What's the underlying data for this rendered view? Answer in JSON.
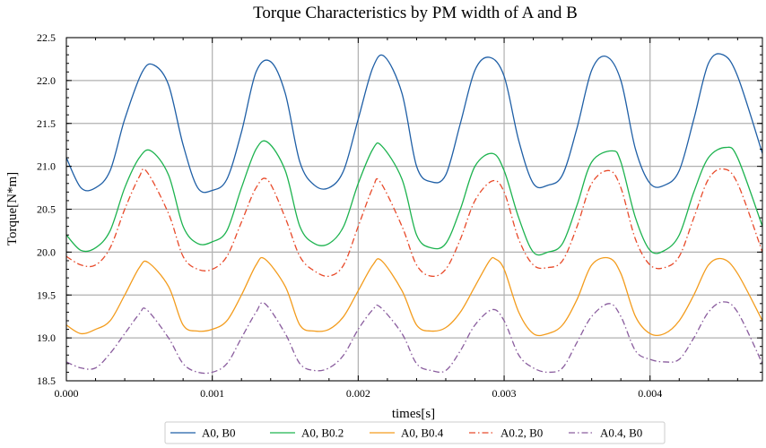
{
  "chart_data": {
    "type": "line",
    "title": "Torque Characteristics by PM width of A and B",
    "xlabel": "times[s]",
    "ylabel": "Torque[N*m]",
    "xlim": [
      0,
      0.00477
    ],
    "ylim": [
      18.5,
      22.5
    ],
    "x_ticks": [
      0,
      0.001,
      0.002,
      0.003,
      0.004
    ],
    "x_tick_labels": [
      "0.000",
      "0.001",
      "0.002",
      "0.003",
      "0.004"
    ],
    "y_ticks": [
      18.5,
      19.0,
      19.5,
      20.0,
      20.5,
      21.0,
      21.5,
      22.0,
      22.5
    ],
    "y_tick_labels": [
      "18.5",
      "19.0",
      "19.5",
      "20.0",
      "20.5",
      "21.0",
      "21.5",
      "22.0",
      "22.5"
    ],
    "grid": true,
    "legend_position": "bottom-center",
    "series": [
      {
        "name": "A0, B0",
        "color": "#1f5fa6",
        "dash": "solid",
        "points": [
          [
            0,
            21.1
          ],
          [
            0.0001,
            20.75
          ],
          [
            0.0002,
            20.75
          ],
          [
            0.0003,
            20.95
          ],
          [
            0.0004,
            21.55
          ],
          [
            0.00052,
            22.1
          ],
          [
            0.0006,
            22.18
          ],
          [
            0.0007,
            21.95
          ],
          [
            0.0008,
            21.25
          ],
          [
            0.0009,
            20.75
          ],
          [
            0.001,
            20.72
          ],
          [
            0.0011,
            20.85
          ],
          [
            0.0012,
            21.4
          ],
          [
            0.0013,
            22.1
          ],
          [
            0.0014,
            22.22
          ],
          [
            0.0015,
            21.85
          ],
          [
            0.0016,
            21.05
          ],
          [
            0.0017,
            20.78
          ],
          [
            0.0018,
            20.75
          ],
          [
            0.0019,
            20.95
          ],
          [
            0.002,
            21.55
          ],
          [
            0.0021,
            22.15
          ],
          [
            0.00218,
            22.28
          ],
          [
            0.0023,
            21.85
          ],
          [
            0.0024,
            21.0
          ],
          [
            0.0025,
            20.82
          ],
          [
            0.0026,
            20.9
          ],
          [
            0.0027,
            21.5
          ],
          [
            0.0028,
            22.12
          ],
          [
            0.0029,
            22.27
          ],
          [
            0.003,
            22.05
          ],
          [
            0.0031,
            21.3
          ],
          [
            0.0032,
            20.8
          ],
          [
            0.0033,
            20.78
          ],
          [
            0.0034,
            20.9
          ],
          [
            0.0035,
            21.45
          ],
          [
            0.0036,
            22.12
          ],
          [
            0.0037,
            22.28
          ],
          [
            0.0038,
            22.0
          ],
          [
            0.0039,
            21.2
          ],
          [
            0.004,
            20.8
          ],
          [
            0.0041,
            20.78
          ],
          [
            0.0042,
            20.95
          ],
          [
            0.0043,
            21.55
          ],
          [
            0.0044,
            22.2
          ],
          [
            0.0045,
            22.3
          ],
          [
            0.0046,
            22.05
          ],
          [
            0.00477,
            21.15
          ]
        ]
      },
      {
        "name": "A0, B0.2",
        "color": "#1db34f",
        "dash": "solid",
        "points": [
          [
            0,
            20.2
          ],
          [
            0.0001,
            20.02
          ],
          [
            0.0002,
            20.05
          ],
          [
            0.0003,
            20.25
          ],
          [
            0.0004,
            20.75
          ],
          [
            0.0005,
            21.1
          ],
          [
            0.00058,
            21.18
          ],
          [
            0.0007,
            20.9
          ],
          [
            0.0008,
            20.3
          ],
          [
            0.0009,
            20.1
          ],
          [
            0.001,
            20.12
          ],
          [
            0.0011,
            20.25
          ],
          [
            0.0012,
            20.75
          ],
          [
            0.0013,
            21.2
          ],
          [
            0.00138,
            21.28
          ],
          [
            0.0015,
            20.95
          ],
          [
            0.0016,
            20.3
          ],
          [
            0.0017,
            20.1
          ],
          [
            0.0018,
            20.1
          ],
          [
            0.0019,
            20.3
          ],
          [
            0.002,
            20.8
          ],
          [
            0.0021,
            21.2
          ],
          [
            0.00216,
            21.24
          ],
          [
            0.0023,
            20.85
          ],
          [
            0.0024,
            20.2
          ],
          [
            0.0025,
            20.05
          ],
          [
            0.0026,
            20.1
          ],
          [
            0.0027,
            20.5
          ],
          [
            0.0028,
            21.0
          ],
          [
            0.00292,
            21.15
          ],
          [
            0.003,
            20.95
          ],
          [
            0.0031,
            20.4
          ],
          [
            0.0032,
            20.0
          ],
          [
            0.0033,
            20.0
          ],
          [
            0.0034,
            20.1
          ],
          [
            0.0035,
            20.55
          ],
          [
            0.0036,
            21.05
          ],
          [
            0.00374,
            21.18
          ],
          [
            0.0038,
            21.05
          ],
          [
            0.0039,
            20.4
          ],
          [
            0.004,
            20.02
          ],
          [
            0.0041,
            20.02
          ],
          [
            0.0042,
            20.2
          ],
          [
            0.0043,
            20.7
          ],
          [
            0.0044,
            21.1
          ],
          [
            0.00452,
            21.22
          ],
          [
            0.0046,
            21.1
          ],
          [
            0.00477,
            20.3
          ]
        ]
      },
      {
        "name": "A0, B0.4",
        "color": "#f39c1d",
        "dash": "solid",
        "points": [
          [
            0,
            19.15
          ],
          [
            0.0001,
            19.05
          ],
          [
            0.0002,
            19.1
          ],
          [
            0.0003,
            19.2
          ],
          [
            0.0004,
            19.5
          ],
          [
            0.0005,
            19.82
          ],
          [
            0.00056,
            19.88
          ],
          [
            0.0007,
            19.6
          ],
          [
            0.0008,
            19.15
          ],
          [
            0.0009,
            19.08
          ],
          [
            0.001,
            19.1
          ],
          [
            0.0011,
            19.2
          ],
          [
            0.0012,
            19.5
          ],
          [
            0.0013,
            19.85
          ],
          [
            0.00136,
            19.92
          ],
          [
            0.0015,
            19.6
          ],
          [
            0.0016,
            19.15
          ],
          [
            0.0017,
            19.08
          ],
          [
            0.0018,
            19.1
          ],
          [
            0.0019,
            19.25
          ],
          [
            0.002,
            19.55
          ],
          [
            0.0021,
            19.85
          ],
          [
            0.00216,
            19.9
          ],
          [
            0.0023,
            19.55
          ],
          [
            0.0024,
            19.15
          ],
          [
            0.0025,
            19.08
          ],
          [
            0.0026,
            19.12
          ],
          [
            0.0027,
            19.3
          ],
          [
            0.0028,
            19.6
          ],
          [
            0.0029,
            19.9
          ],
          [
            0.00294,
            19.92
          ],
          [
            0.003,
            19.8
          ],
          [
            0.0031,
            19.3
          ],
          [
            0.0032,
            19.05
          ],
          [
            0.0033,
            19.05
          ],
          [
            0.0034,
            19.15
          ],
          [
            0.0035,
            19.45
          ],
          [
            0.0036,
            19.85
          ],
          [
            0.00372,
            19.93
          ],
          [
            0.0038,
            19.75
          ],
          [
            0.0039,
            19.25
          ],
          [
            0.004,
            19.05
          ],
          [
            0.0041,
            19.05
          ],
          [
            0.0042,
            19.2
          ],
          [
            0.0043,
            19.5
          ],
          [
            0.0044,
            19.85
          ],
          [
            0.0045,
            19.92
          ],
          [
            0.0046,
            19.75
          ],
          [
            0.00477,
            19.2
          ]
        ]
      },
      {
        "name": "A0.2, B0",
        "color": "#e84a2a",
        "dash": "dashdot",
        "points": [
          [
            0,
            19.95
          ],
          [
            0.0001,
            19.85
          ],
          [
            0.0002,
            19.85
          ],
          [
            0.0003,
            20.05
          ],
          [
            0.0004,
            20.5
          ],
          [
            0.0005,
            20.88
          ],
          [
            0.00055,
            20.94
          ],
          [
            0.0007,
            20.45
          ],
          [
            0.0008,
            19.95
          ],
          [
            0.0009,
            19.8
          ],
          [
            0.001,
            19.8
          ],
          [
            0.0011,
            19.95
          ],
          [
            0.0012,
            20.35
          ],
          [
            0.0013,
            20.75
          ],
          [
            0.00138,
            20.84
          ],
          [
            0.0015,
            20.4
          ],
          [
            0.0016,
            19.95
          ],
          [
            0.0017,
            19.78
          ],
          [
            0.0018,
            19.72
          ],
          [
            0.0019,
            19.85
          ],
          [
            0.002,
            20.3
          ],
          [
            0.0021,
            20.75
          ],
          [
            0.00215,
            20.82
          ],
          [
            0.0023,
            20.3
          ],
          [
            0.0024,
            19.85
          ],
          [
            0.0025,
            19.72
          ],
          [
            0.0026,
            19.8
          ],
          [
            0.0027,
            20.15
          ],
          [
            0.0028,
            20.6
          ],
          [
            0.00292,
            20.83
          ],
          [
            0.003,
            20.7
          ],
          [
            0.0031,
            20.15
          ],
          [
            0.0032,
            19.85
          ],
          [
            0.0033,
            19.82
          ],
          [
            0.0034,
            19.9
          ],
          [
            0.0035,
            20.3
          ],
          [
            0.0036,
            20.8
          ],
          [
            0.00372,
            20.95
          ],
          [
            0.0038,
            20.75
          ],
          [
            0.0039,
            20.15
          ],
          [
            0.004,
            19.85
          ],
          [
            0.0041,
            19.82
          ],
          [
            0.0042,
            19.95
          ],
          [
            0.0043,
            20.4
          ],
          [
            0.0044,
            20.85
          ],
          [
            0.0045,
            20.97
          ],
          [
            0.0046,
            20.8
          ],
          [
            0.00477,
            20.0
          ]
        ]
      },
      {
        "name": "A0.4, B0",
        "color": "#8a5d9e",
        "dash": "dashdot",
        "points": [
          [
            0,
            18.72
          ],
          [
            0.0001,
            18.65
          ],
          [
            0.0002,
            18.65
          ],
          [
            0.0003,
            18.82
          ],
          [
            0.0004,
            19.05
          ],
          [
            0.0005,
            19.28
          ],
          [
            0.00055,
            19.33
          ],
          [
            0.0007,
            19.0
          ],
          [
            0.0008,
            18.7
          ],
          [
            0.0009,
            18.6
          ],
          [
            0.001,
            18.6
          ],
          [
            0.0011,
            18.7
          ],
          [
            0.0012,
            19.0
          ],
          [
            0.0013,
            19.3
          ],
          [
            0.00136,
            19.4
          ],
          [
            0.0015,
            19.05
          ],
          [
            0.0016,
            18.7
          ],
          [
            0.0017,
            18.62
          ],
          [
            0.0018,
            18.65
          ],
          [
            0.0019,
            18.8
          ],
          [
            0.002,
            19.1
          ],
          [
            0.0021,
            19.33
          ],
          [
            0.00215,
            19.36
          ],
          [
            0.0023,
            19.05
          ],
          [
            0.0024,
            18.7
          ],
          [
            0.0025,
            18.62
          ],
          [
            0.0026,
            18.62
          ],
          [
            0.0027,
            18.85
          ],
          [
            0.0028,
            19.15
          ],
          [
            0.00292,
            19.33
          ],
          [
            0.003,
            19.2
          ],
          [
            0.0031,
            18.8
          ],
          [
            0.0032,
            18.65
          ],
          [
            0.0033,
            18.6
          ],
          [
            0.0034,
            18.65
          ],
          [
            0.0035,
            18.95
          ],
          [
            0.0036,
            19.25
          ],
          [
            0.00372,
            19.4
          ],
          [
            0.0038,
            19.25
          ],
          [
            0.0039,
            18.85
          ],
          [
            0.004,
            18.75
          ],
          [
            0.0041,
            18.72
          ],
          [
            0.0042,
            18.75
          ],
          [
            0.0043,
            19.0
          ],
          [
            0.0044,
            19.3
          ],
          [
            0.0045,
            19.42
          ],
          [
            0.0046,
            19.3
          ],
          [
            0.00477,
            18.7
          ]
        ]
      }
    ]
  }
}
